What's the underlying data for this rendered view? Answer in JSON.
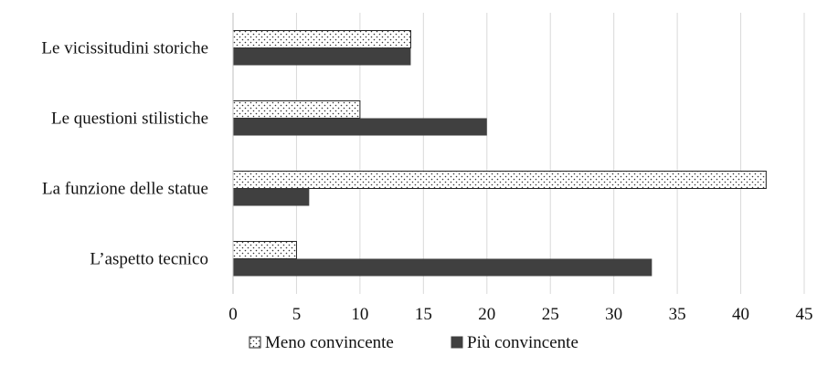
{
  "chart_data": {
    "type": "bar",
    "orientation": "horizontal",
    "categories": [
      "Le vicissitudini storiche",
      "Le questioni stilistiche",
      "La funzione delle statue",
      "L’aspetto tecnico"
    ],
    "series": [
      {
        "name": "Meno convincente",
        "values": [
          14,
          10,
          42,
          5
        ],
        "fill": "dotted",
        "color": "#ffffff"
      },
      {
        "name": "Più convincente",
        "values": [
          14,
          20,
          6,
          33
        ],
        "fill": "solid",
        "color": "#404040"
      }
    ],
    "xlim": [
      0,
      45
    ],
    "xticks": [
      0,
      5,
      10,
      15,
      20,
      25,
      30,
      35,
      40,
      45
    ],
    "grid": true,
    "legend_position": "bottom"
  }
}
